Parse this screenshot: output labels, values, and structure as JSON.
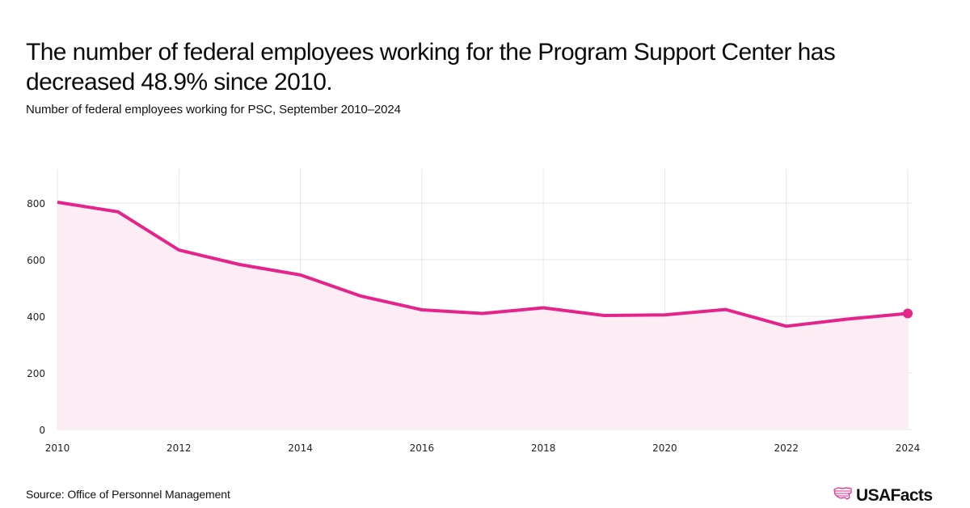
{
  "header": {
    "title": "The number of federal employees working for the Program Support Center has decreased 48.9% since 2010.",
    "subtitle": "Number of federal employees working for PSC, September 2010–2024"
  },
  "footer": {
    "source": "Source: Office of Personnel Management",
    "logo_text": "USAFacts",
    "logo_icon": "usa-map-flag-icon"
  },
  "colors": {
    "line": "#e5248b",
    "area": "#fcedf5",
    "grid": "#e6e6e6"
  },
  "chart_data": {
    "type": "area",
    "title": "The number of federal employees working for the Program Support Center has decreased 48.9% since 2010.",
    "subtitle": "Number of federal employees working for PSC, September 2010–2024",
    "xlabel": "",
    "ylabel": "",
    "x": [
      2010,
      2011,
      2012,
      2013,
      2014,
      2015,
      2016,
      2017,
      2018,
      2019,
      2020,
      2021,
      2022,
      2023,
      2024
    ],
    "series": [
      {
        "name": "Federal employees working for PSC",
        "values": [
          803,
          769,
          634,
          583,
          546,
          471,
          423,
          410,
          430,
          403,
          405,
          424,
          365,
          390,
          410
        ]
      }
    ],
    "xlim": [
      2010,
      2024
    ],
    "ylim": [
      0,
      920
    ],
    "x_ticks": [
      2010,
      2012,
      2014,
      2016,
      2018,
      2020,
      2022,
      2024
    ],
    "x_tick_labels": [
      "2010",
      "2012",
      "2014",
      "2016",
      "2018",
      "2020",
      "2022",
      "2024"
    ],
    "y_ticks": [
      0,
      200,
      400,
      600,
      800
    ],
    "y_tick_labels": [
      "0",
      "200",
      "400",
      "600",
      "800"
    ],
    "grid": true,
    "legend": "none",
    "highlight_last_point": true
  }
}
